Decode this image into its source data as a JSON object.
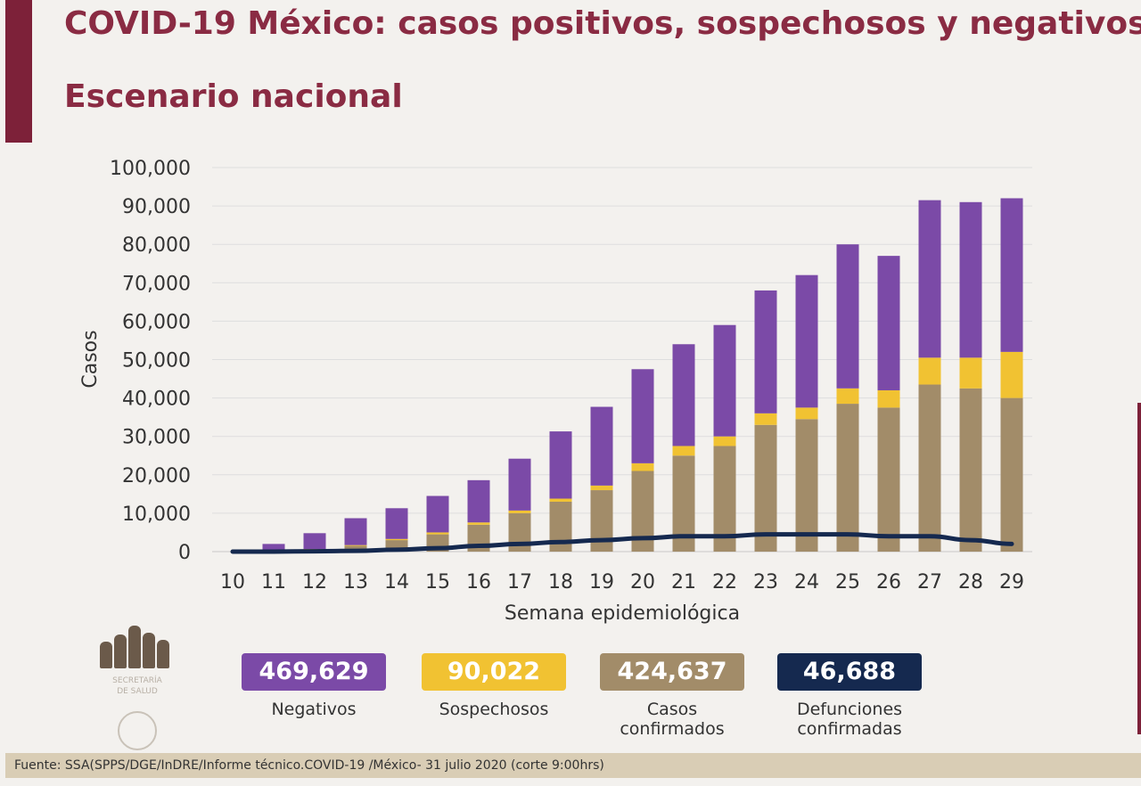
{
  "page": {
    "title": "COVID-19 México: casos positivos, sospechosos y negativos",
    "subtitle": "Escenario nacional"
  },
  "colors": {
    "negativos": "#7b4aa7",
    "sospechosos": "#f1c232",
    "confirmados": "#a28c69",
    "defunciones": "#15294f",
    "brand": "#8a2b43"
  },
  "chart_data": {
    "type": "bar",
    "stacked": true,
    "xlabel": "Semana epidemiológica",
    "ylabel": "Casos",
    "ylim": [
      0,
      100000
    ],
    "yticks": [
      0,
      10000,
      20000,
      30000,
      40000,
      50000,
      60000,
      70000,
      80000,
      90000,
      100000
    ],
    "ytick_labels": [
      "0",
      "10,000",
      "20,000",
      "30,000",
      "40,000",
      "50,000",
      "60,000",
      "70,000",
      "80,000",
      "90,000",
      "100,000"
    ],
    "grid": true,
    "categories": [
      "10",
      "11",
      "12",
      "13",
      "14",
      "15",
      "16",
      "17",
      "18",
      "19",
      "20",
      "21",
      "22",
      "23",
      "24",
      "25",
      "26",
      "27",
      "28",
      "29"
    ],
    "series": [
      {
        "key": "confirmados",
        "type": "bar",
        "values": [
          0,
          100,
          600,
          1500,
          3000,
          4500,
          7000,
          10000,
          13000,
          16000,
          21000,
          25000,
          27500,
          33000,
          34500,
          38500,
          37500,
          43500,
          42500,
          40000
        ]
      },
      {
        "key": "sospechosos",
        "type": "bar",
        "values": [
          0,
          100,
          100,
          200,
          300,
          500,
          600,
          700,
          800,
          1200,
          2000,
          2500,
          2500,
          3000,
          3000,
          4000,
          4500,
          7000,
          8000,
          12000
        ]
      },
      {
        "key": "negativos",
        "type": "bar",
        "values": [
          0,
          1800,
          4100,
          7000,
          8000,
          9500,
          11000,
          13500,
          17500,
          20500,
          24500,
          26500,
          29000,
          32000,
          34500,
          37500,
          35000,
          41000,
          40500,
          40000
        ]
      },
      {
        "key": "defunciones",
        "type": "line",
        "values": [
          0,
          0,
          100,
          200,
          500,
          900,
          1500,
          2000,
          2500,
          3000,
          3500,
          4000,
          4000,
          4500,
          4500,
          4500,
          4000,
          4000,
          3000,
          2000
        ]
      }
    ]
  },
  "kpis": [
    {
      "key": "negativos",
      "value": "469,629",
      "label_lines": [
        "Negativos"
      ]
    },
    {
      "key": "sospechosos",
      "value": "90,022",
      "label_lines": [
        "Sospechosos"
      ]
    },
    {
      "key": "confirmados",
      "value": "424,637",
      "label_lines": [
        "Casos",
        "confirmados"
      ]
    },
    {
      "key": "defunciones",
      "value": "46,688",
      "label_lines": [
        "Defunciones",
        "confirmadas"
      ]
    }
  ],
  "footer": {
    "source": "Fuente: SSA(SPPS/DGE/InDRE/Informe técnico.COVID-19 /México- 31 julio 2020 (corte 9:00hrs)"
  }
}
